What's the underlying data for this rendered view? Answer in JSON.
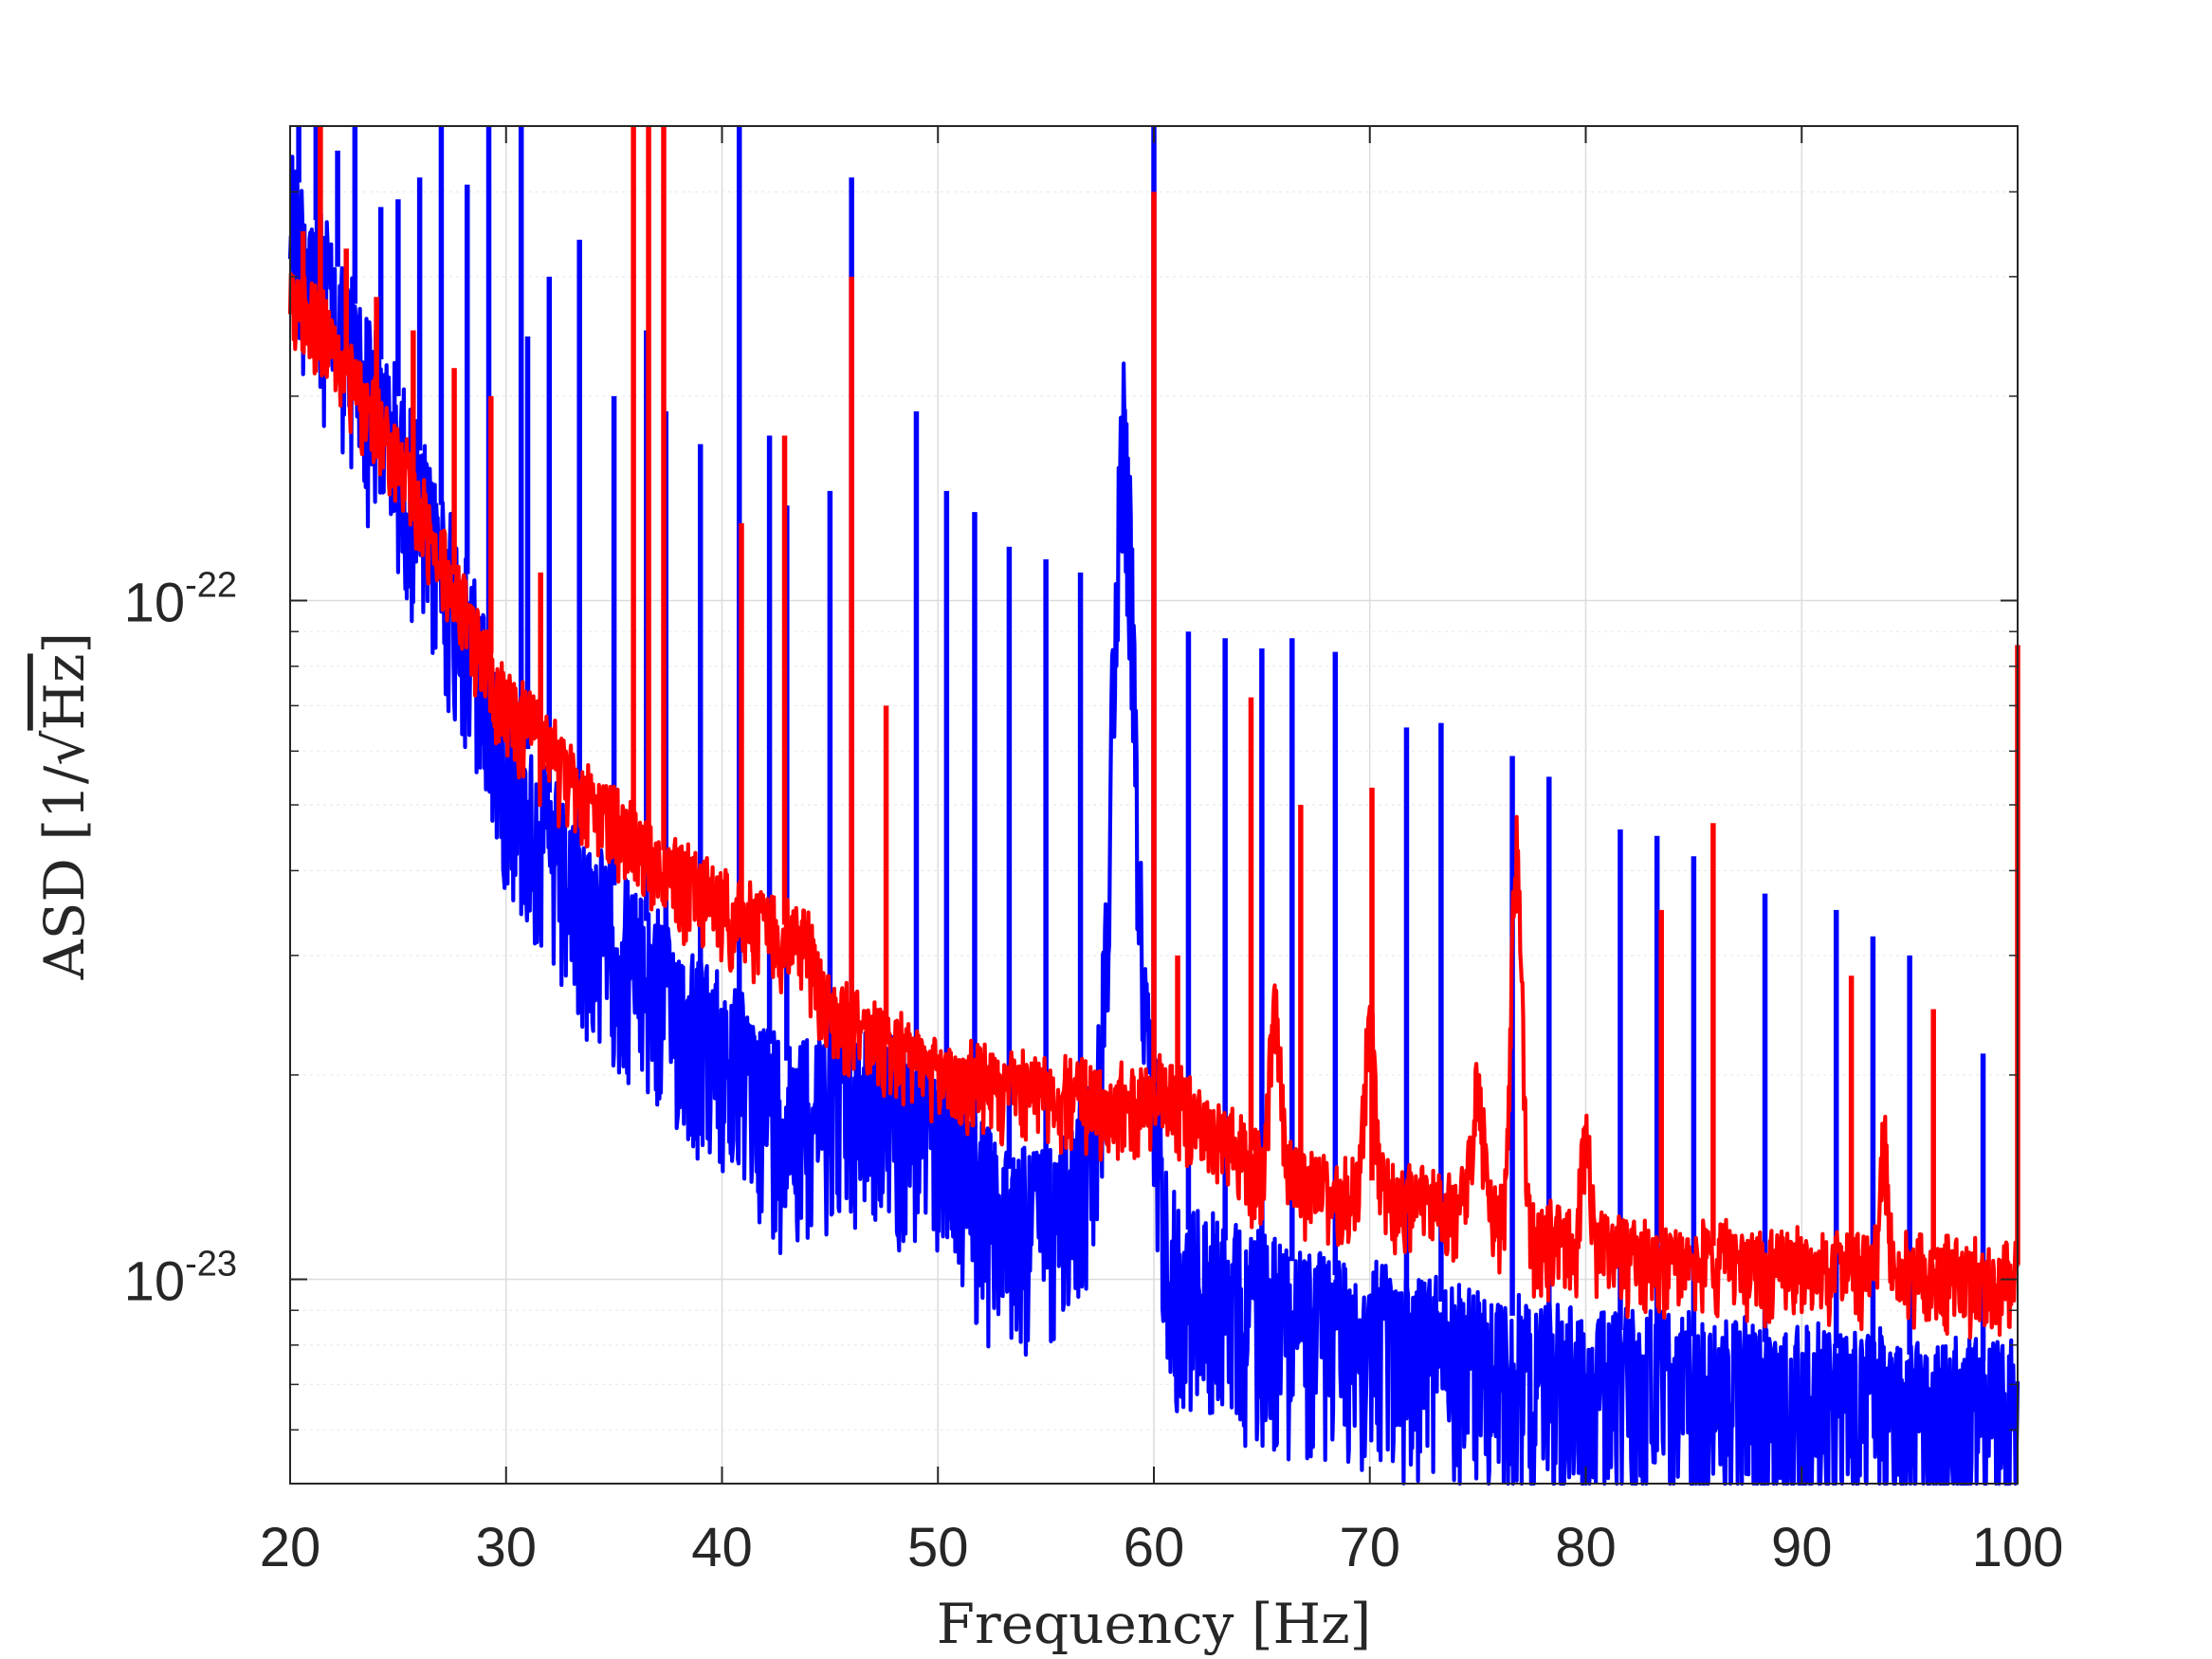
{
  "chart_data": {
    "type": "line",
    "title": "",
    "xlabel": "Frequency [Hz]",
    "ylabel_prefix": "ASD [1/",
    "ylabel_radicand": "Hz",
    "ylabel_suffix": "]",
    "xlim": [
      20,
      100
    ],
    "ylim": [
      5e-24,
      5e-22
    ],
    "yscale": "log",
    "grid": true,
    "minor_grid": true,
    "legend": "none",
    "xticks": [
      {
        "value": 20,
        "label": "20"
      },
      {
        "value": 30,
        "label": "30"
      },
      {
        "value": 40,
        "label": "40"
      },
      {
        "value": 50,
        "label": "50"
      },
      {
        "value": 60,
        "label": "60"
      },
      {
        "value": 70,
        "label": "70"
      },
      {
        "value": 80,
        "label": "80"
      },
      {
        "value": 90,
        "label": "90"
      },
      {
        "value": 100,
        "label": "100"
      }
    ],
    "yticks": [
      {
        "value": 1e-23,
        "base": "10",
        "exp": "-23"
      },
      {
        "value": 1e-22,
        "base": "10",
        "exp": "-22"
      }
    ],
    "series": [
      {
        "color": "#0000ff",
        "floor_points": [
          [
            20,
            4.4e-22
          ],
          [
            22,
            3.2e-22
          ],
          [
            25,
            2e-22
          ],
          [
            28,
            1.15e-22
          ],
          [
            30,
            7e-23
          ],
          [
            33,
            4.5e-23
          ],
          [
            36,
            3.5e-23
          ],
          [
            40,
            2.6e-23
          ],
          [
            43,
            2.1e-23
          ],
          [
            45,
            2.3e-23
          ],
          [
            48,
            2.1e-23
          ],
          [
            50,
            2e-23
          ],
          [
            53,
            1.45e-23
          ],
          [
            56,
            1.5e-23
          ],
          [
            58,
            2.2e-23
          ],
          [
            60,
            2.1e-23
          ],
          [
            61,
            1.2e-23
          ],
          [
            65,
            1.1e-23
          ],
          [
            69,
            1e-23
          ],
          [
            75,
            9e-24
          ],
          [
            80,
            8.5e-24
          ],
          [
            90,
            8e-24
          ],
          [
            100,
            7.5e-24
          ]
        ],
        "noise_spread": 0.3,
        "bumps": [
          {
            "f": 58.6,
            "width": 0.7,
            "peak": 2.1e-22
          }
        ],
        "lines": [
          {
            "f": 20.4,
            "peak": 5.2e-22
          },
          {
            "f": 21.2,
            "peak": 5e-22
          },
          {
            "f": 22.2,
            "peak": 4.6e-22
          },
          {
            "f": 23.0,
            "peak": 5.2e-22
          },
          {
            "f": 24.2,
            "peak": 3.8e-22
          },
          {
            "f": 25.0,
            "peak": 3.9e-22
          },
          {
            "f": 26.0,
            "peak": 4.2e-22
          },
          {
            "f": 27.0,
            "peak": 5.2e-22
          },
          {
            "f": 28.2,
            "peak": 4.1e-22
          },
          {
            "f": 29.2,
            "peak": 5.2e-22
          },
          {
            "f": 30.7,
            "peak": 5e-22
          },
          {
            "f": 31.0,
            "peak": 2.45e-22
          },
          {
            "f": 32.0,
            "peak": 3e-22
          },
          {
            "f": 33.4,
            "peak": 3.4e-22
          },
          {
            "f": 35.0,
            "peak": 2e-22
          },
          {
            "f": 36.5,
            "peak": 2.5e-22
          },
          {
            "f": 37.4,
            "peak": 1.9e-22
          },
          {
            "f": 39.0,
            "peak": 1.7e-22
          },
          {
            "f": 40.8,
            "peak": 5.2e-22
          },
          {
            "f": 42.2,
            "peak": 1.75e-22
          },
          {
            "f": 43.0,
            "peak": 1.38e-22
          },
          {
            "f": 45.0,
            "peak": 1.45e-22
          },
          {
            "f": 46.0,
            "peak": 4.2e-22
          },
          {
            "f": 49.0,
            "peak": 1.9e-22
          },
          {
            "f": 50.4,
            "peak": 1.45e-22
          },
          {
            "f": 51.7,
            "peak": 1.35e-22
          },
          {
            "f": 53.3,
            "peak": 1.2e-22
          },
          {
            "f": 55.0,
            "peak": 1.15e-22
          },
          {
            "f": 56.6,
            "peak": 1.1e-22
          },
          {
            "f": 60.0,
            "peak": 5.2e-22
          },
          {
            "f": 61.6,
            "peak": 9e-23
          },
          {
            "f": 63.3,
            "peak": 8.8e-23
          },
          {
            "f": 65.0,
            "peak": 8.5e-23
          },
          {
            "f": 66.4,
            "peak": 8.8e-23
          },
          {
            "f": 68.4,
            "peak": 8.4e-23
          },
          {
            "f": 71.7,
            "peak": 6.5e-23
          },
          {
            "f": 73.3,
            "peak": 6.6e-23
          },
          {
            "f": 76.6,
            "peak": 5.9e-23
          },
          {
            "f": 78.3,
            "peak": 5.5e-23
          },
          {
            "f": 81.6,
            "peak": 4.6e-23
          },
          {
            "f": 83.3,
            "peak": 4.5e-23
          },
          {
            "f": 85.0,
            "peak": 4.2e-23
          },
          {
            "f": 88.3,
            "peak": 3.7e-23
          },
          {
            "f": 91.6,
            "peak": 3.5e-23
          },
          {
            "f": 93.3,
            "peak": 3.2e-23
          },
          {
            "f": 95.0,
            "peak": 3e-23
          },
          {
            "f": 98.4,
            "peak": 2.15e-23
          }
        ]
      },
      {
        "color": "#ff0000",
        "floor_points": [
          [
            20,
            3e-22
          ],
          [
            22,
            2.5e-22
          ],
          [
            25,
            1.7e-22
          ],
          [
            27,
            1.2e-22
          ],
          [
            30,
            7.5e-23
          ],
          [
            33,
            5.7e-23
          ],
          [
            36,
            4.6e-23
          ],
          [
            40,
            3.7e-23
          ],
          [
            44,
            3.2e-23
          ],
          [
            45,
            2.6e-23
          ],
          [
            48,
            2.3e-23
          ],
          [
            50,
            2.1e-23
          ],
          [
            55,
            2e-23
          ],
          [
            59.5,
            1.9e-23
          ],
          [
            60.5,
            2e-23
          ],
          [
            65,
            1.5e-23
          ],
          [
            70,
            1.4e-23
          ],
          [
            75,
            1.3e-23
          ],
          [
            80,
            1.15e-23
          ],
          [
            90,
            1.1e-23
          ],
          [
            100,
            1.05e-23
          ]
        ],
        "noise_spread": 0.12,
        "bumps": [
          {
            "f": 65.6,
            "width": 0.35,
            "peak": 2.6e-23
          },
          {
            "f": 70.0,
            "width": 0.35,
            "peak": 2.5e-23
          },
          {
            "f": 75.0,
            "width": 0.4,
            "peak": 2e-23
          },
          {
            "f": 76.8,
            "width": 0.35,
            "peak": 4.5e-23
          },
          {
            "f": 80.0,
            "width": 0.3,
            "peak": 1.75e-23
          },
          {
            "f": 93.8,
            "width": 0.25,
            "peak": 1.65e-23
          }
        ],
        "lines": [
          {
            "f": 20.6,
            "peak": 3.5e-22
          },
          {
            "f": 21.4,
            "peak": 5.2e-22
          },
          {
            "f": 22.6,
            "peak": 3.3e-22
          },
          {
            "f": 24.0,
            "peak": 2.8e-22
          },
          {
            "f": 25.7,
            "peak": 2.5e-22
          },
          {
            "f": 27.6,
            "peak": 2.2e-22
          },
          {
            "f": 29.3,
            "peak": 2e-22
          },
          {
            "f": 31.6,
            "peak": 1.1e-22
          },
          {
            "f": 35.9,
            "peak": 5.2e-22
          },
          {
            "f": 36.6,
            "peak": 5.2e-22
          },
          {
            "f": 37.3,
            "peak": 5.2e-22
          },
          {
            "f": 40.9,
            "peak": 1.3e-22
          },
          {
            "f": 42.9,
            "peak": 1.75e-22
          },
          {
            "f": 46.0,
            "peak": 3e-22
          },
          {
            "f": 47.6,
            "peak": 7e-23
          },
          {
            "f": 60.0,
            "peak": 4e-22
          },
          {
            "f": 61.1,
            "peak": 3e-23
          },
          {
            "f": 64.5,
            "peak": 7.2e-23
          },
          {
            "f": 66.8,
            "peak": 5e-23
          },
          {
            "f": 70.1,
            "peak": 5.3e-23
          },
          {
            "f": 83.5,
            "peak": 3.5e-23
          },
          {
            "f": 85.9,
            "peak": 4.7e-23
          },
          {
            "f": 92.3,
            "peak": 2.8e-23
          },
          {
            "f": 96.1,
            "peak": 2.5e-23
          },
          {
            "f": 100.0,
            "peak": 8.6e-23
          }
        ]
      }
    ]
  }
}
